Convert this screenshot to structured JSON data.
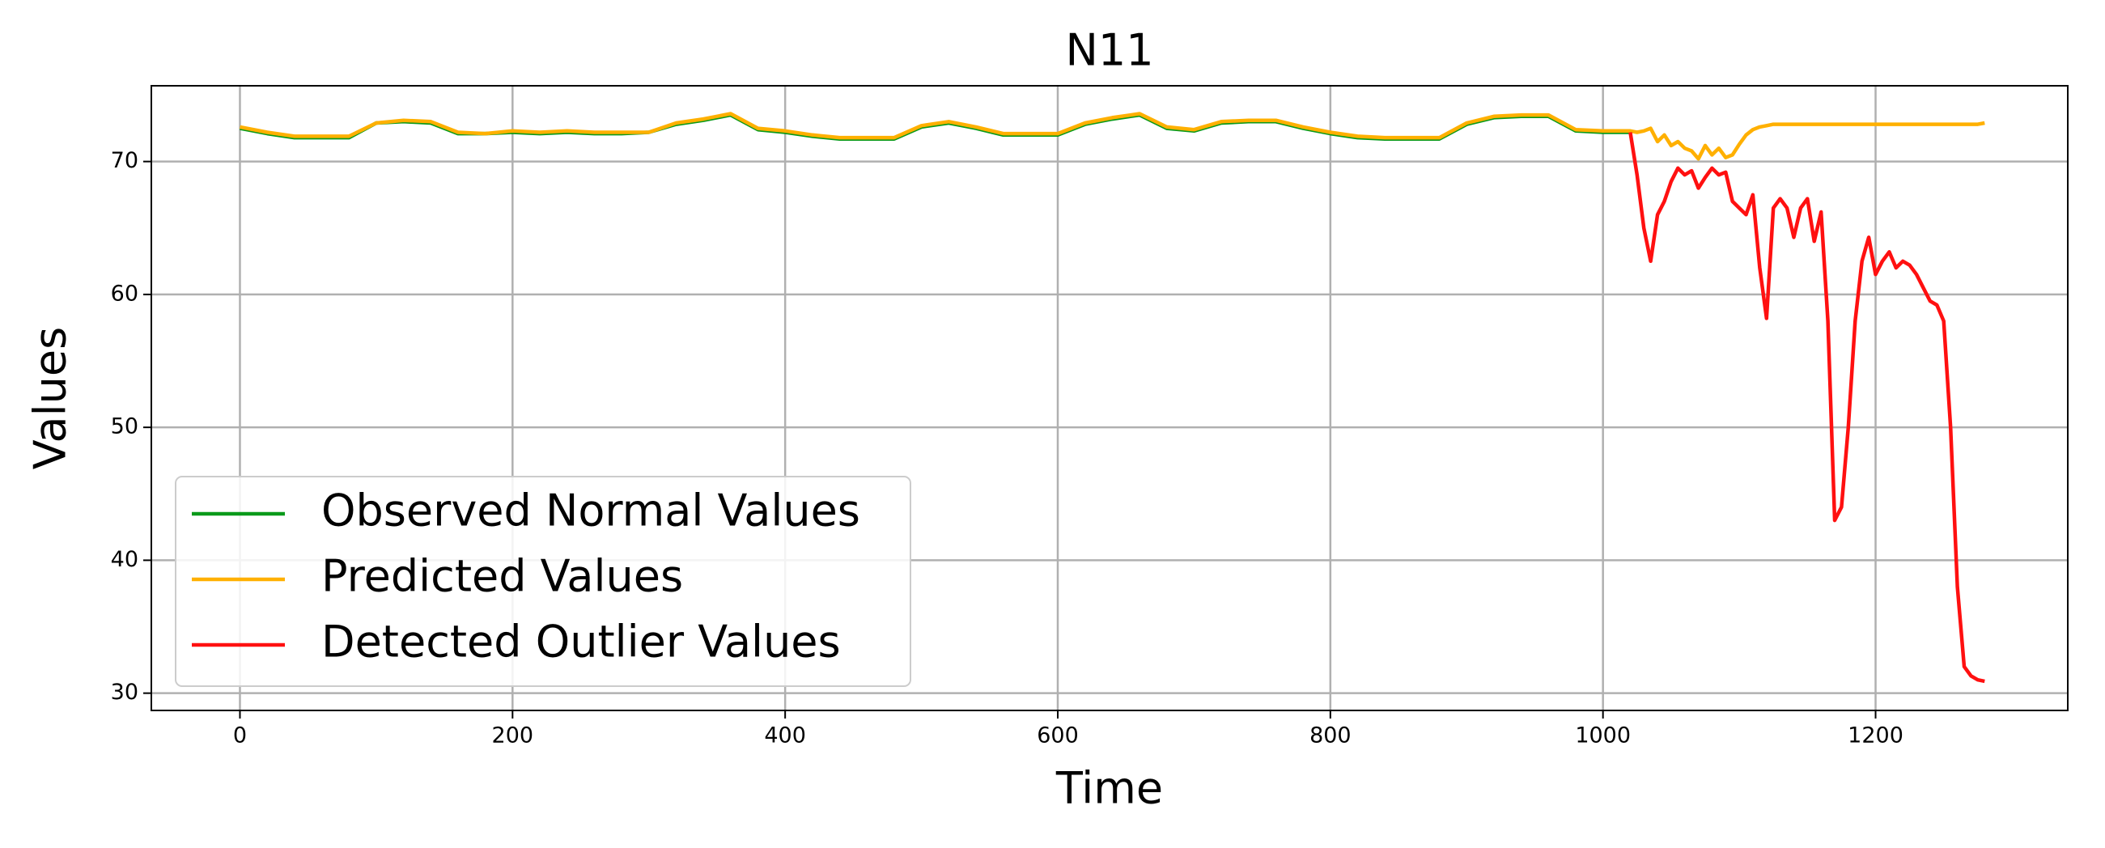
{
  "chart_data": {
    "type": "line",
    "title": "N11",
    "xlabel": "Time",
    "ylabel": "Values",
    "x": [
      0,
      20,
      40,
      60,
      80,
      100,
      120,
      140,
      160,
      180,
      200,
      220,
      240,
      260,
      280,
      300,
      320,
      340,
      360,
      380,
      400,
      420,
      440,
      460,
      480,
      500,
      520,
      540,
      560,
      580,
      600,
      620,
      640,
      660,
      680,
      700,
      720,
      740,
      760,
      780,
      800,
      820,
      840,
      860,
      880,
      900,
      920,
      940,
      960,
      980,
      1000,
      1020,
      1025,
      1030,
      1035,
      1040,
      1045,
      1050,
      1055,
      1060,
      1065,
      1070,
      1075,
      1080,
      1085,
      1090,
      1095,
      1100,
      1105,
      1110,
      1115,
      1120,
      1125,
      1130,
      1135,
      1140,
      1145,
      1150,
      1155,
      1160,
      1165,
      1170,
      1175,
      1180,
      1185,
      1190,
      1195,
      1200,
      1205,
      1210,
      1215,
      1220,
      1225,
      1230,
      1235,
      1240,
      1245,
      1250,
      1255,
      1260,
      1265,
      1270,
      1275,
      1280
    ],
    "series": [
      {
        "name": "Observed Normal Values",
        "color": "#0a9a1a",
        "values": [
          72.5,
          72.1,
          71.8,
          71.8,
          71.8,
          72.9,
          73.0,
          72.9,
          72.1,
          72.1,
          72.2,
          72.1,
          72.2,
          72.1,
          72.1,
          72.2,
          72.8,
          73.1,
          73.5,
          72.4,
          72.2,
          71.9,
          71.7,
          71.7,
          71.7,
          72.6,
          72.9,
          72.5,
          72.0,
          72.0,
          72.0,
          72.8,
          73.2,
          73.5,
          72.5,
          72.3,
          72.9,
          73.0,
          73.0,
          72.5,
          72.1,
          71.8,
          71.7,
          71.7,
          71.7,
          72.8,
          73.3,
          73.4,
          73.4,
          72.3,
          72.2,
          72.2,
          null,
          null,
          null,
          null,
          null,
          null,
          null,
          null,
          null,
          null,
          null,
          null,
          null,
          null,
          null,
          null,
          null,
          null,
          null,
          null,
          null,
          null,
          null,
          null,
          null,
          null,
          null,
          null,
          null,
          null,
          null,
          null,
          null,
          null,
          null,
          null,
          null,
          null,
          null,
          null,
          null,
          null,
          null,
          null,
          null,
          null,
          null,
          null,
          null,
          null,
          null,
          null
        ]
      },
      {
        "name": "Predicted Values",
        "color": "#ffb000",
        "values": [
          72.6,
          72.2,
          71.9,
          71.9,
          71.9,
          72.9,
          73.1,
          73.0,
          72.2,
          72.1,
          72.3,
          72.2,
          72.3,
          72.2,
          72.2,
          72.2,
          72.9,
          73.2,
          73.6,
          72.5,
          72.3,
          72.0,
          71.8,
          71.8,
          71.8,
          72.7,
          73.0,
          72.6,
          72.1,
          72.1,
          72.1,
          72.9,
          73.3,
          73.6,
          72.6,
          72.4,
          73.0,
          73.1,
          73.1,
          72.6,
          72.2,
          71.9,
          71.8,
          71.8,
          71.8,
          72.9,
          73.4,
          73.5,
          73.5,
          72.4,
          72.3,
          72.3,
          72.2,
          72.3,
          72.5,
          71.5,
          72.0,
          71.2,
          71.5,
          71.0,
          70.8,
          70.2,
          71.2,
          70.5,
          71.0,
          70.3,
          70.5,
          71.3,
          72.0,
          72.4,
          72.6,
          72.7,
          72.8,
          72.8,
          72.8,
          72.8,
          72.8,
          72.8,
          72.8,
          72.8,
          72.8,
          72.8,
          72.8,
          72.8,
          72.8,
          72.8,
          72.8,
          72.8,
          72.8,
          72.8,
          72.8,
          72.8,
          72.8,
          72.8,
          72.8,
          72.8,
          72.8,
          72.8,
          72.8,
          72.8,
          72.8,
          72.8,
          72.8,
          72.9
        ]
      },
      {
        "name": "Detected Outlier Values",
        "color": "#ff1010",
        "values": [
          null,
          null,
          null,
          null,
          null,
          null,
          null,
          null,
          null,
          null,
          null,
          null,
          null,
          null,
          null,
          null,
          null,
          null,
          null,
          null,
          null,
          null,
          null,
          null,
          null,
          null,
          null,
          null,
          null,
          null,
          null,
          null,
          null,
          null,
          null,
          null,
          null,
          null,
          null,
          null,
          null,
          null,
          null,
          null,
          null,
          null,
          null,
          null,
          null,
          null,
          null,
          72.2,
          69,
          65,
          62.5,
          66,
          67,
          68.5,
          69.5,
          69,
          69.3,
          68,
          68.8,
          69.5,
          69,
          69.2,
          67,
          66.5,
          66,
          67.5,
          62,
          58.2,
          66.5,
          67.2,
          66.5,
          64.3,
          66.5,
          67.2,
          64,
          66.2,
          58,
          43,
          44,
          50,
          58,
          62.5,
          64.3,
          61.5,
          62.5,
          63.2,
          62,
          62.5,
          62.2,
          61.5,
          60.5,
          59.5,
          59.2,
          58,
          50,
          38,
          32,
          31.3,
          31,
          30.9
        ]
      }
    ],
    "xlim": [
      -65,
      1341
    ],
    "ylim": [
      28.7,
      75.7
    ],
    "xticks": [
      0,
      200,
      400,
      600,
      800,
      1000,
      1200
    ],
    "yticks": [
      30,
      40,
      50,
      60,
      70
    ],
    "grid": true,
    "legend": "lower left"
  }
}
